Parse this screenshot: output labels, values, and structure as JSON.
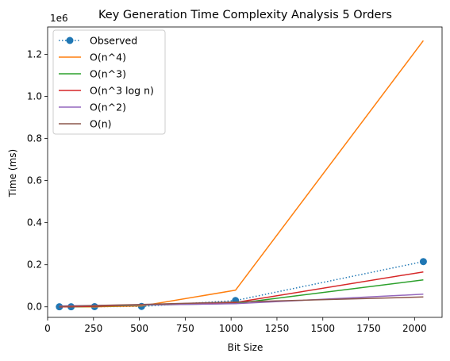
{
  "chart_data": {
    "type": "line",
    "title": "Key Generation Time Complexity Analysis 5 Orders",
    "xlabel": "Bit Size",
    "ylabel": "Time (ms)",
    "y_offset_label": "1e6",
    "xlim": [
      0,
      2150
    ],
    "ylim": [
      -50000,
      1330000
    ],
    "y_scale_factor": 1000000,
    "x": [
      64,
      128,
      256,
      512,
      1024,
      2048
    ],
    "xticks": [
      0,
      250,
      500,
      750,
      1000,
      1250,
      1500,
      1750,
      2000
    ],
    "yticks": [
      0,
      200000,
      400000,
      600000,
      800000,
      1000000,
      1200000
    ],
    "ytick_labels": [
      "0.0",
      "0.2",
      "0.4",
      "0.6",
      "0.8",
      "1.0",
      "1.2"
    ],
    "grid": false,
    "legend_position": "top-left",
    "series": [
      {
        "name": "Observed",
        "color": "#1f77b4",
        "style": "dotted-marker",
        "values": [
          200,
          400,
          1000,
          2000,
          30000,
          215000
        ]
      },
      {
        "name": "O(n^4)",
        "color": "#ff7f0e",
        "style": "solid",
        "values": [
          1,
          17,
          270,
          4400,
          79000,
          1265000
        ]
      },
      {
        "name": "O(n^3)",
        "color": "#2ca02c",
        "style": "solid",
        "values": [
          40,
          300,
          2000,
          7900,
          16000,
          128000
        ]
      },
      {
        "name": "O(n^3 log n)",
        "color": "#d62728",
        "style": "solid",
        "values": [
          50,
          400,
          2800,
          10500,
          21000,
          166000
        ]
      },
      {
        "name": "O(n^2)",
        "color": "#9467bd",
        "style": "solid",
        "values": [
          4000,
          5200,
          6500,
          8700,
          15000,
          60000
        ]
      },
      {
        "name": "O(n)",
        "color": "#8c564b",
        "style": "solid",
        "values": [
          1500,
          3000,
          6000,
          11000,
          23000,
          47000
        ]
      }
    ]
  }
}
